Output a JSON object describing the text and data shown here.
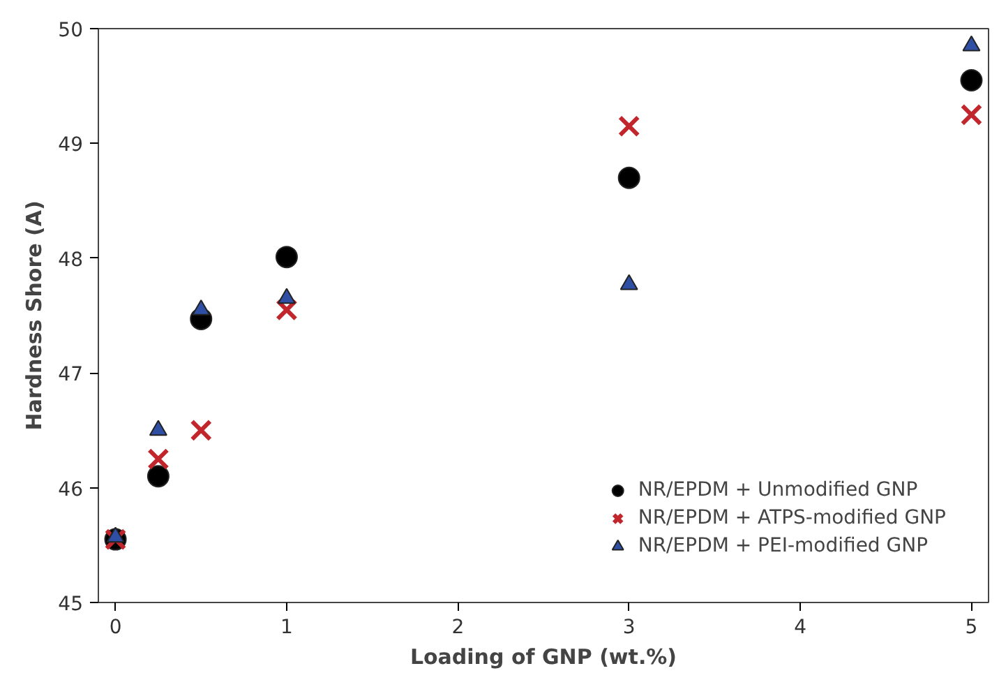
{
  "chart_data": {
    "type": "scatter",
    "xlabel": "Loading of GNP (wt.%)",
    "ylabel": "Hardness Shore (A)",
    "x": [
      0,
      0.25,
      0.5,
      1,
      3,
      5
    ],
    "series": [
      {
        "name": "NR/EPDM + Unmodified GNP",
        "color": "#000000",
        "marker": "circle",
        "values": [
          45.55,
          46.1,
          47.47,
          48.01,
          48.7,
          49.55
        ]
      },
      {
        "name": "NR/EPDM + ATPS-modified GNP",
        "color": "#c0262b",
        "marker": "cross",
        "values": [
          45.55,
          46.25,
          46.5,
          47.55,
          49.15,
          49.25
        ]
      },
      {
        "name": "NR/EPDM + PEI-modified GNP",
        "color": "#2e4fa3",
        "marker": "triangle",
        "values": [
          45.57,
          46.5,
          47.55,
          47.65,
          47.77,
          49.85
        ]
      }
    ],
    "xlim": [
      -0.1,
      5.1
    ],
    "ylim": [
      45,
      50
    ],
    "xticks": [
      0,
      1,
      2,
      3,
      4,
      5
    ],
    "yticks": [
      45,
      46,
      47,
      48,
      49,
      50
    ],
    "grid": false,
    "legend": "bottom right"
  }
}
